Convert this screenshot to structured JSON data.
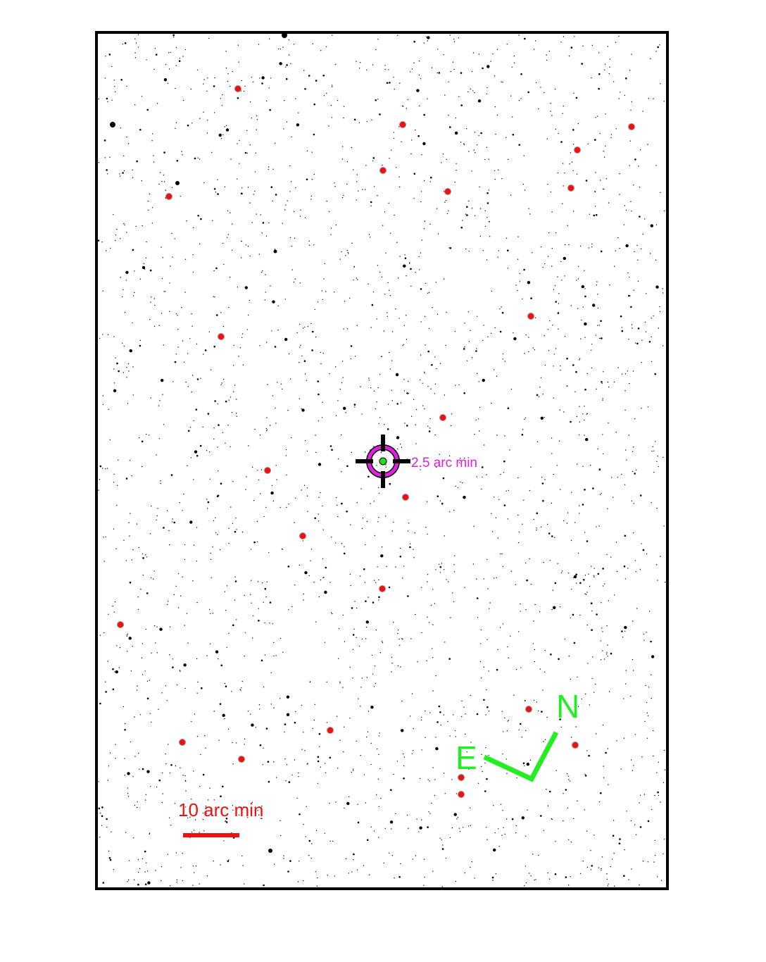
{
  "finder_chart": {
    "target_marker": {
      "icon": "crosshair-reticle-icon",
      "ring_color": "#e020e0",
      "center_color": "#22dd22",
      "radius_label": "2.5 arc min"
    },
    "comparison_markers": {
      "color": "#ee1111",
      "count": 23
    },
    "scale_bar": {
      "label": "10 arc min",
      "color": "#ee1111"
    },
    "compass": {
      "north_label": "N",
      "east_label": "E",
      "color": "#22ee22"
    },
    "background": "#ffffff",
    "frame_color": "#000000"
  }
}
